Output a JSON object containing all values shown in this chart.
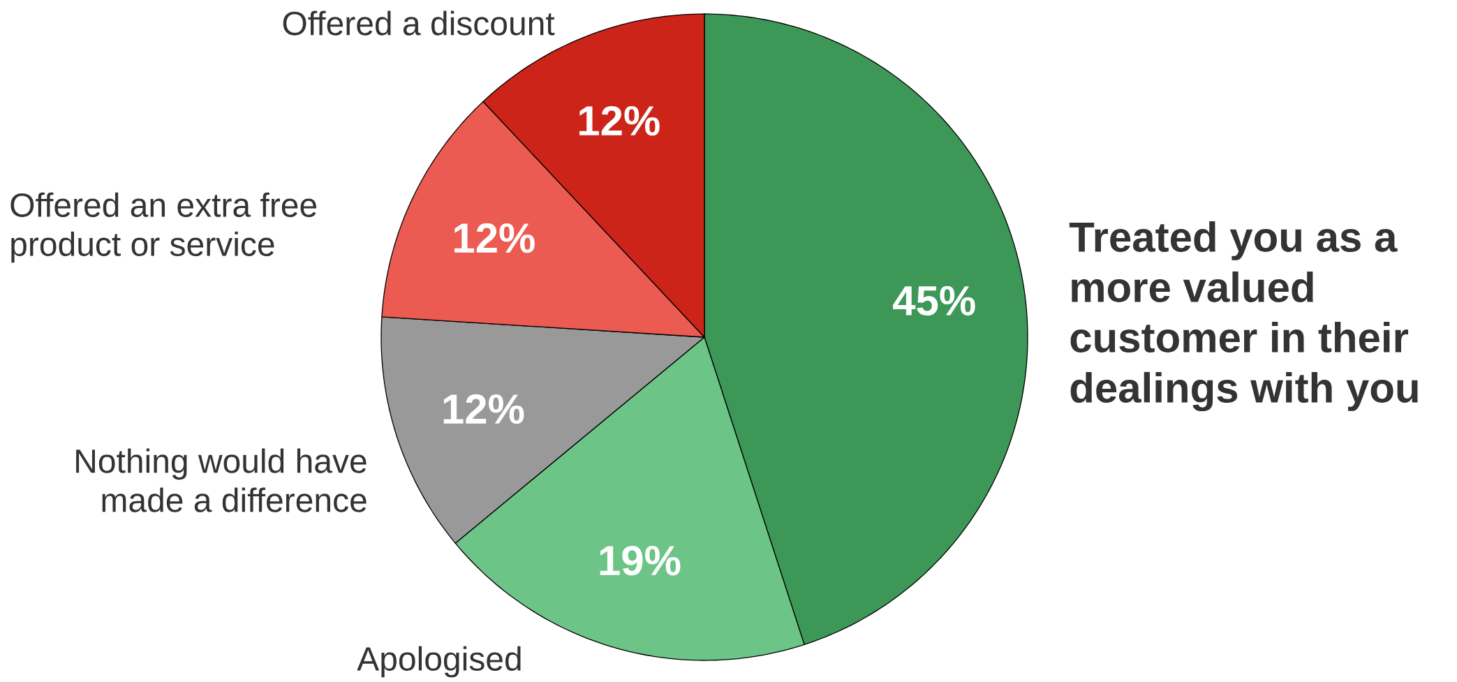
{
  "chart_data": {
    "type": "pie",
    "categories": [
      "Treated you as a more valued customer in their dealings with you",
      "Apologised",
      "Nothing would have made a difference",
      "Offered an extra free product or service",
      "Offered a discount"
    ],
    "values": [
      45,
      19,
      12,
      12,
      12
    ],
    "colors": [
      "#3d9857",
      "#6cc486",
      "#999999",
      "#ec5b51",
      "#cc2418"
    ],
    "value_labels": [
      "45%",
      "19%",
      "12%",
      "12%",
      "12%"
    ]
  }
}
